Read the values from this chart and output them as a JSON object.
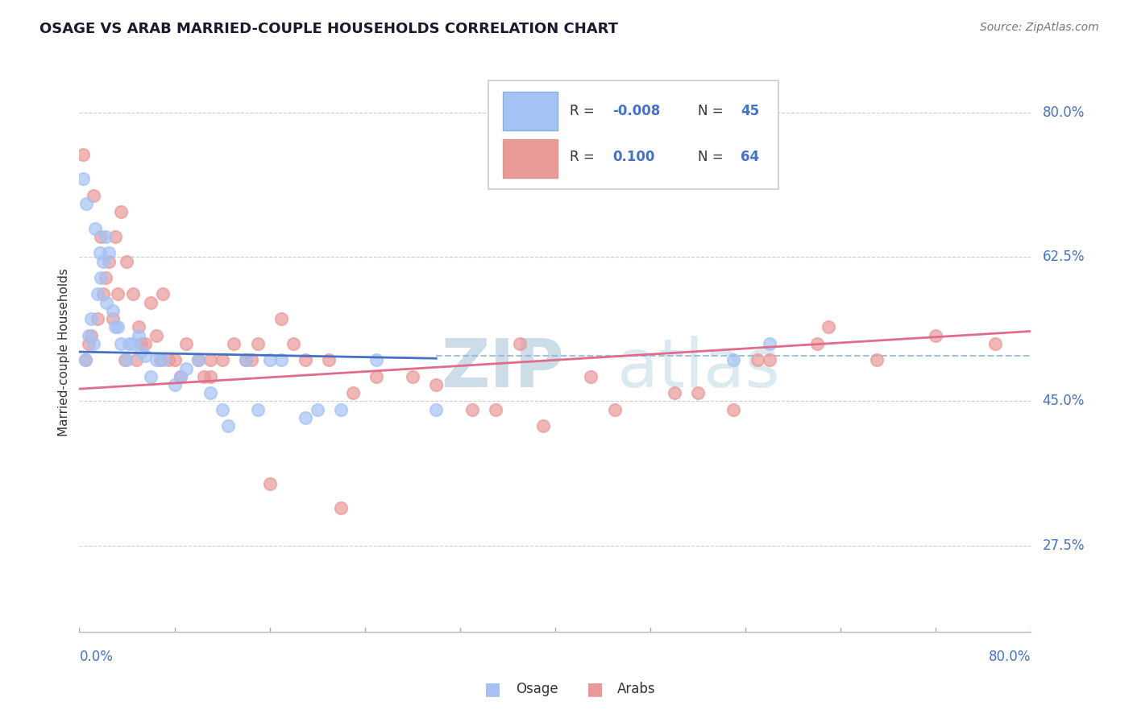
{
  "title": "OSAGE VS ARAB MARRIED-COUPLE HOUSEHOLDS CORRELATION CHART",
  "source": "Source: ZipAtlas.com",
  "x_min": 0.0,
  "x_max": 80.0,
  "y_min": 17.0,
  "y_max": 85.0,
  "ylabel_ticks": [
    27.5,
    45.0,
    62.5,
    80.0
  ],
  "ylabel_labels": [
    "27.5%",
    "45.0%",
    "62.5%",
    "80.0%"
  ],
  "osage_color": "#a4c2f4",
  "arab_color": "#ea9999",
  "osage_line_color": "#4472c4",
  "arab_line_color": "#e06c8a",
  "dashed_line_color": "#8ab4d8",
  "dashed_line_y": 50.5,
  "blue_trend_x": [
    0.0,
    30.0
  ],
  "blue_trend_y": [
    51.0,
    50.2
  ],
  "pink_trend_x": [
    0.0,
    80.0
  ],
  "pink_trend_y": [
    46.5,
    53.5
  ],
  "osage_x": [
    0.5,
    0.8,
    1.0,
    1.2,
    1.5,
    1.8,
    2.0,
    2.2,
    2.5,
    2.8,
    3.0,
    3.5,
    4.0,
    4.5,
    5.0,
    5.5,
    6.0,
    7.0,
    8.0,
    9.0,
    10.0,
    11.0,
    12.0,
    14.0,
    15.0,
    17.0,
    19.0,
    22.0,
    55.0,
    58.0,
    0.3,
    0.6,
    1.3,
    1.7,
    2.3,
    3.2,
    4.2,
    5.2,
    6.5,
    8.5,
    12.5,
    16.0,
    20.0,
    25.0,
    30.0
  ],
  "osage_y": [
    50.0,
    53.0,
    55.0,
    52.0,
    58.0,
    60.0,
    62.0,
    65.0,
    63.0,
    56.0,
    54.0,
    52.0,
    50.0,
    52.0,
    53.0,
    50.5,
    48.0,
    50.0,
    47.0,
    49.0,
    50.0,
    46.0,
    44.0,
    50.0,
    44.0,
    50.0,
    43.0,
    44.0,
    50.0,
    52.0,
    72.0,
    69.0,
    66.0,
    63.0,
    57.0,
    54.0,
    52.0,
    51.0,
    50.0,
    48.0,
    42.0,
    50.0,
    44.0,
    50.0,
    44.0
  ],
  "arab_x": [
    0.5,
    0.8,
    1.0,
    1.5,
    2.0,
    2.5,
    3.0,
    3.5,
    4.0,
    4.5,
    5.0,
    5.5,
    6.0,
    6.5,
    7.0,
    8.0,
    9.0,
    10.0,
    11.0,
    12.0,
    13.0,
    14.0,
    15.0,
    17.0,
    19.0,
    21.0,
    25.0,
    30.0,
    35.0,
    37.0,
    43.0,
    50.0,
    55.0,
    58.0,
    63.0,
    0.3,
    1.2,
    1.8,
    2.8,
    3.8,
    5.2,
    6.8,
    8.5,
    11.0,
    14.5,
    18.0,
    23.0,
    28.0,
    33.0,
    39.0,
    45.0,
    52.0,
    57.0,
    62.0,
    67.0,
    72.0,
    77.0,
    2.2,
    3.2,
    4.8,
    7.5,
    10.5,
    16.0,
    22.0
  ],
  "arab_y": [
    50.0,
    52.0,
    53.0,
    55.0,
    58.0,
    62.0,
    65.0,
    68.0,
    62.0,
    58.0,
    54.0,
    52.0,
    57.0,
    53.0,
    58.0,
    50.0,
    52.0,
    50.0,
    48.0,
    50.0,
    52.0,
    50.0,
    52.0,
    55.0,
    50.0,
    50.0,
    48.0,
    47.0,
    44.0,
    52.0,
    48.0,
    46.0,
    44.0,
    50.0,
    54.0,
    75.0,
    70.0,
    65.0,
    55.0,
    50.0,
    52.0,
    50.0,
    48.0,
    50.0,
    50.0,
    52.0,
    46.0,
    48.0,
    44.0,
    42.0,
    44.0,
    46.0,
    50.0,
    52.0,
    50.0,
    53.0,
    52.0,
    60.0,
    58.0,
    50.0,
    50.0,
    48.0,
    35.0,
    32.0
  ]
}
